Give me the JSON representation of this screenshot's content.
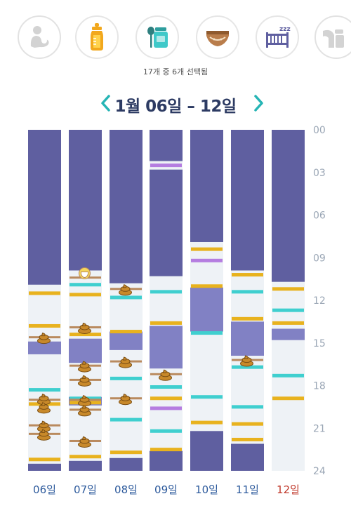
{
  "category_icons": [
    {
      "name": "nursing-icon",
      "selected": false
    },
    {
      "name": "bottle-icon",
      "selected": true
    },
    {
      "name": "baby-food-icon",
      "selected": true
    },
    {
      "name": "diaper-icon",
      "selected": true
    },
    {
      "name": "sleep-crib-icon",
      "selected": true
    },
    {
      "name": "breast-pump-icon",
      "selected": false
    }
  ],
  "selection_count": "17개 중 6개 선택됨",
  "date_range": "1월 06일 – 12일",
  "colors": {
    "sleep": "#5f5fa0",
    "sleep_light": "#8181c4",
    "empty": "#eef2f6",
    "bottle": "#e8b21e",
    "solid": "#3fcfcf",
    "pump": "#b57de0",
    "diaper": "#b98a5e",
    "poop": "#c8892a",
    "accent": "#26b5b5",
    "today": "#c0392b"
  },
  "chart_data": {
    "type": "timeline",
    "y_ticks": [
      "00",
      "03",
      "06",
      "09",
      "12",
      "15",
      "18",
      "21",
      "24"
    ],
    "ylim": [
      0,
      24
    ],
    "days": [
      {
        "label": "06일",
        "today": false,
        "sleep": [
          [
            0,
            10.9
          ],
          [
            23.5,
            24
          ]
        ],
        "sleep_light": [
          [
            14.9,
            15.8
          ]
        ],
        "bottle": [
          11.5,
          13.8,
          19.3,
          23.2
        ],
        "solid": [
          18.3
        ],
        "pump": [],
        "diaper": [
          14.6,
          19.0,
          20.8,
          21.4
        ],
        "poop": [
          14.6,
          18.9,
          19.5,
          20.8,
          21.4
        ],
        "pee": []
      },
      {
        "label": "07일",
        "today": false,
        "sleep": [
          [
            0,
            9.9
          ],
          [
            23.3,
            24
          ]
        ],
        "sleep_light": [
          [
            14.7,
            16.4
          ],
          [
            18.8,
            19.4
          ]
        ],
        "bottle": [
          11.6,
          14.4,
          19.2,
          23.0
        ],
        "solid": [
          10.9,
          18.9
        ],
        "pump": [
          19.1
        ],
        "diaper": [
          10.4,
          13.9,
          16.6,
          17.6,
          19.0,
          19.7,
          21.9
        ],
        "poop": [
          13.9,
          16.6,
          17.6,
          19.0,
          19.7,
          21.9
        ],
        "pee": [
          10.1
        ]
      },
      {
        "label": "08일",
        "today": false,
        "sleep": [
          [
            0,
            10.8
          ],
          [
            23.1,
            24
          ]
        ],
        "sleep_light": [
          [
            14.2,
            15.5
          ]
        ],
        "bottle": [
          14.2,
          22.7
        ],
        "solid": [
          11.8,
          17.5,
          20.4
        ],
        "pump": [],
        "diaper": [
          11.2,
          16.3,
          18.9
        ],
        "poop": [
          11.2,
          16.3,
          18.9
        ],
        "pee": []
      },
      {
        "label": "09일",
        "today": false,
        "sleep": [
          [
            0,
            2.2
          ],
          [
            2.8,
            10.3
          ],
          [
            22.6,
            24
          ]
        ],
        "sleep_light": [
          [
            13.8,
            16.8
          ]
        ],
        "bottle": [
          13.6,
          18.9,
          22.5
        ],
        "solid": [
          11.4,
          18.1,
          21.2
        ],
        "pump": [
          2.5,
          19.6
        ],
        "diaper": [
          17.2
        ],
        "poop": [
          17.2
        ],
        "pee": []
      },
      {
        "label": "10일",
        "today": false,
        "sleep": [
          [
            0,
            7.9
          ],
          [
            21.2,
            24
          ]
        ],
        "sleep_light": [
          [
            11.1,
            14.2
          ]
        ],
        "bottle": [
          8.4,
          11.0,
          20.6
        ],
        "solid": [
          14.3,
          18.8
        ],
        "pump": [
          9.2
        ],
        "diaper": [],
        "poop": [],
        "pee": []
      },
      {
        "label": "11일",
        "today": false,
        "sleep": [
          [
            0,
            9.9
          ],
          [
            22.1,
            24
          ]
        ],
        "sleep_light": [
          [
            13.5,
            15.9
          ]
        ],
        "bottle": [
          10.2,
          13.3,
          20.7,
          21.8
        ],
        "solid": [
          11.4,
          16.7,
          19.5
        ],
        "pump": [],
        "diaper": [
          16.2
        ],
        "poop": [
          16.2
        ],
        "pee": []
      },
      {
        "label": "12일",
        "today": true,
        "sleep": [
          [
            0,
            10.7
          ]
        ],
        "sleep_light": [
          [
            14.0,
            14.8
          ]
        ],
        "bottle": [
          11.2,
          13.6,
          18.9
        ],
        "solid": [
          12.7,
          17.3
        ],
        "pump": [],
        "diaper": [],
        "poop": [],
        "pee": []
      }
    ]
  }
}
